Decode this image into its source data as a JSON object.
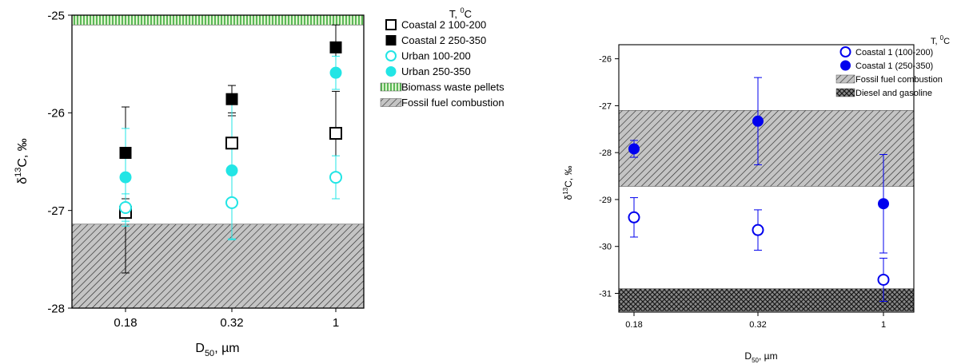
{
  "chart_data": [
    {
      "type": "scatter",
      "x_kind": "categorical",
      "categories": [
        "0.18",
        "0.32",
        "1"
      ],
      "xlabel_main": "D",
      "xlabel_sub": "50",
      "xlabel_tail": ", µm",
      "ylabel_pre": "δ",
      "ylabel_sup": "13",
      "ylabel_post": "C, ‰",
      "ylim": [
        -28,
        -25
      ],
      "yticks": [
        -28,
        -27,
        -26,
        -25
      ],
      "legend_title_pre": "T, ",
      "legend_title_sup": "0",
      "legend_title_post": "C",
      "series": [
        {
          "name": "Coastal 2 100-200",
          "marker": "square",
          "filled": false,
          "color": "#000000",
          "values": [
            -27.02,
            -26.31,
            -26.21
          ],
          "errors": [
            0.62,
            0.28,
            0.43
          ]
        },
        {
          "name": "Coastal 2 250-350",
          "marker": "square",
          "filled": true,
          "color": "#000000",
          "values": [
            -26.41,
            -25.86,
            -25.33
          ],
          "errors": [
            0.47,
            0.14,
            0.23
          ]
        },
        {
          "name": "Urban 100-200",
          "marker": "circle",
          "filled": false,
          "color": "#22e5e5",
          "values": [
            -26.97,
            -26.92,
            -26.66
          ],
          "errors": [
            0.14,
            0.37,
            0.22
          ]
        },
        {
          "name": "Urban 250-350",
          "marker": "circle",
          "filled": true,
          "color": "#22e5e5",
          "values": [
            -26.66,
            -26.59,
            -25.59
          ],
          "errors": [
            0.5,
            0.71,
            0.17
          ]
        }
      ],
      "bands": [
        {
          "name": "Biomass waste pellets",
          "y_from": -25.1,
          "y_to": -24.96,
          "pattern": "vertical-green"
        },
        {
          "name": "Fossil fuel combustion",
          "y_from": -28.0,
          "y_to": -27.14,
          "pattern": "diagonal-gray"
        }
      ]
    },
    {
      "type": "scatter",
      "x_kind": "categorical",
      "categories": [
        "0.18",
        "0.32",
        "1"
      ],
      "xlabel_main": "D",
      "xlabel_sub": "50",
      "xlabel_tail": ", µm",
      "ylabel_pre": "δ",
      "ylabel_sup": "13",
      "ylabel_post": "C, ‰",
      "ylim": [
        -31.4,
        -25.7
      ],
      "yticks": [
        -31,
        -30,
        -29,
        -28,
        -27,
        -26
      ],
      "legend_title_pre": "T, ",
      "legend_title_sup": "0",
      "legend_title_post": "C",
      "series": [
        {
          "name": "Coastal 1 (100-200)",
          "marker": "circle",
          "filled": false,
          "color": "#0000ee",
          "values": [
            -29.38,
            -29.65,
            -30.71
          ],
          "errors": [
            0.42,
            0.43,
            0.46
          ]
        },
        {
          "name": "Coastal 1 (250-350)",
          "marker": "circle",
          "filled": true,
          "color": "#0000ee",
          "values": [
            -27.92,
            -27.33,
            -29.09
          ],
          "errors": [
            0.18,
            0.93,
            1.05
          ]
        }
      ],
      "bands": [
        {
          "name": "Fossil fuel combustion",
          "y_from": -28.72,
          "y_to": -27.1,
          "pattern": "diagonal-gray"
        },
        {
          "name": "Diesel and gasoline",
          "y_from": -31.38,
          "y_to": -30.9,
          "pattern": "crosshatch-dark"
        }
      ]
    }
  ]
}
